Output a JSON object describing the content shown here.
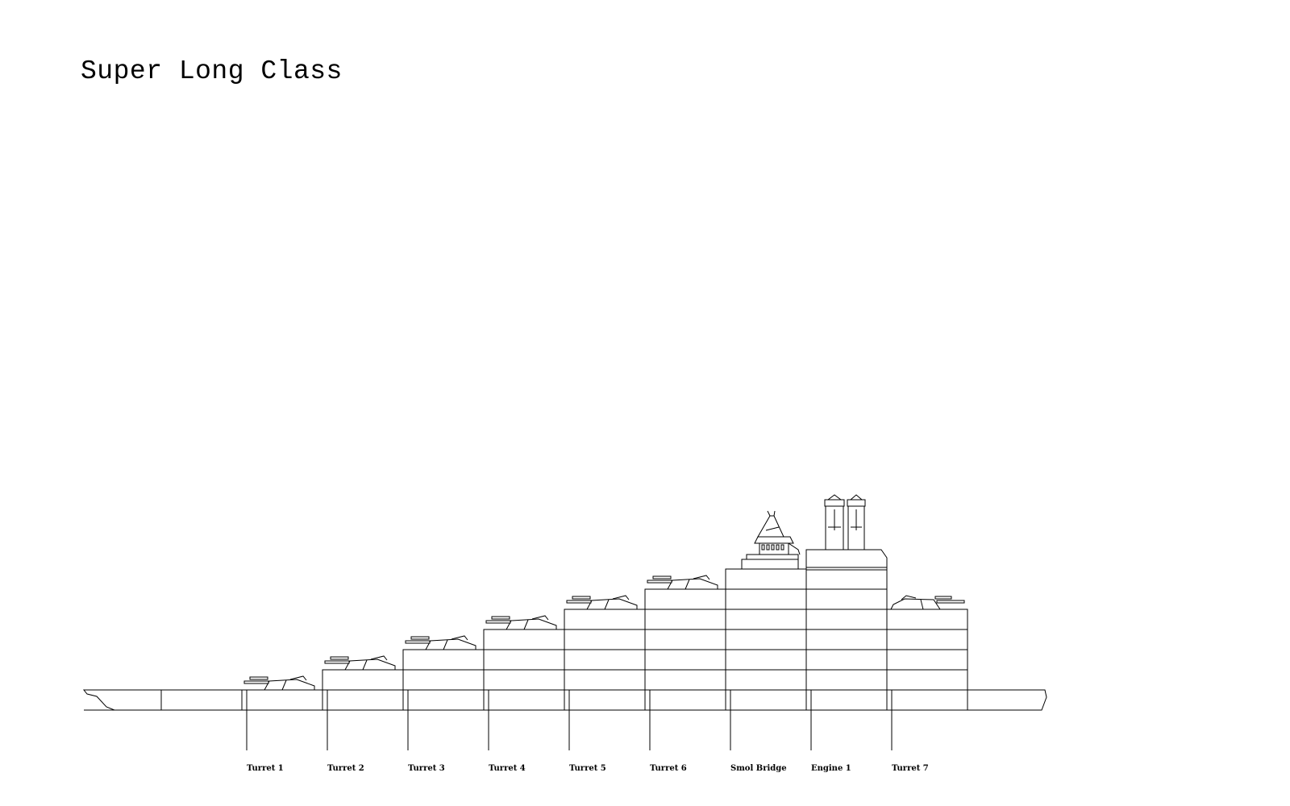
{
  "title": "Super Long Class",
  "sections": [
    {
      "label": "Turret 1",
      "height": 1,
      "module": "turret",
      "facing": "fore"
    },
    {
      "label": "Turret 2",
      "height": 2,
      "module": "turret",
      "facing": "fore"
    },
    {
      "label": "Turret 3",
      "height": 3,
      "module": "turret",
      "facing": "fore"
    },
    {
      "label": "Turret 4",
      "height": 4,
      "module": "turret",
      "facing": "fore"
    },
    {
      "label": "Turret 5",
      "height": 5,
      "module": "turret",
      "facing": "fore"
    },
    {
      "label": "Turret 6",
      "height": 6,
      "module": "turret",
      "facing": "fore"
    },
    {
      "label": "Smol Bridge",
      "height": 7,
      "module": "bridge"
    },
    {
      "label": "Engine 1",
      "height": 7,
      "module": "engine"
    },
    {
      "label": "Turret 7",
      "height": 5,
      "module": "turret",
      "facing": "aft"
    }
  ],
  "line_color": "#000000",
  "background": "#ffffff"
}
